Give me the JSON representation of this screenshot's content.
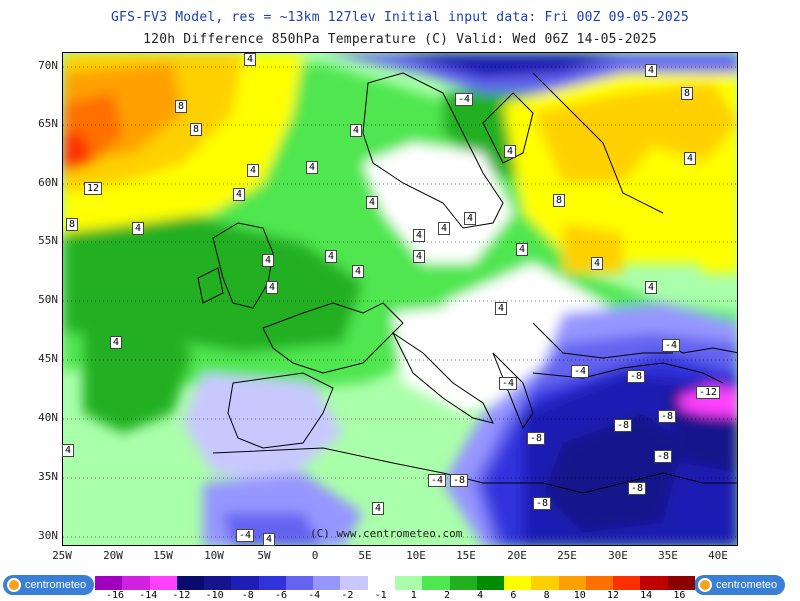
{
  "header": {
    "line1": "GFS-FV3 Model, res = ~13km 127lev    Initial input data: Fri 00Z 09-05-2025",
    "line2": "120h Difference 850hPa Temperature (C)  Valid: Wed 06Z 14-05-2025"
  },
  "lat_labels": [
    "70N",
    "65N",
    "60N",
    "55N",
    "50N",
    "45N",
    "40N",
    "35N",
    "30N"
  ],
  "lon_labels": [
    "25W",
    "20W",
    "15W",
    "10W",
    "5W",
    "0",
    "5E",
    "10E",
    "15E",
    "20E",
    "25E",
    "30E",
    "35E",
    "40E"
  ],
  "contour_labels": [
    "4",
    "4",
    "8",
    "8",
    "12",
    "8",
    "4",
    "4",
    "4",
    "4",
    "4",
    "4",
    "4",
    "4",
    "4",
    "4",
    "4",
    "4",
    "-4",
    "-4",
    "-8",
    "-8",
    "-8",
    "-12",
    "-8",
    "-8",
    "-8",
    "-8",
    "-4",
    "-4",
    "-8",
    "4",
    "-4",
    "-4",
    "4",
    "4",
    "4",
    "8",
    "8",
    "4",
    "4",
    "4",
    "4",
    "4",
    "4",
    "4",
    "4"
  ],
  "credit": "(C) www.centrometeo.com",
  "logos": {
    "left": "centrometeo",
    "right": "centrometeo"
  },
  "legend": {
    "ticks": [
      "-16",
      "-14",
      "-12",
      "-10",
      "-8",
      "-6",
      "-4",
      "-2",
      "-1",
      "1",
      "2",
      "4",
      "6",
      "8",
      "10",
      "12",
      "14",
      "16"
    ],
    "colors": [
      "#a000c0",
      "#d020e0",
      "#ff40ff",
      "#0a0a6e",
      "#14148c",
      "#1e1eb4",
      "#3232dc",
      "#6464f0",
      "#9696ff",
      "#c8c8ff",
      "#ffffff",
      "#aaffaa",
      "#50e650",
      "#20b020",
      "#008c00",
      "#ffff00",
      "#ffd000",
      "#ffa000",
      "#ff7000",
      "#ff3000",
      "#c00000",
      "#8c0000"
    ]
  }
}
